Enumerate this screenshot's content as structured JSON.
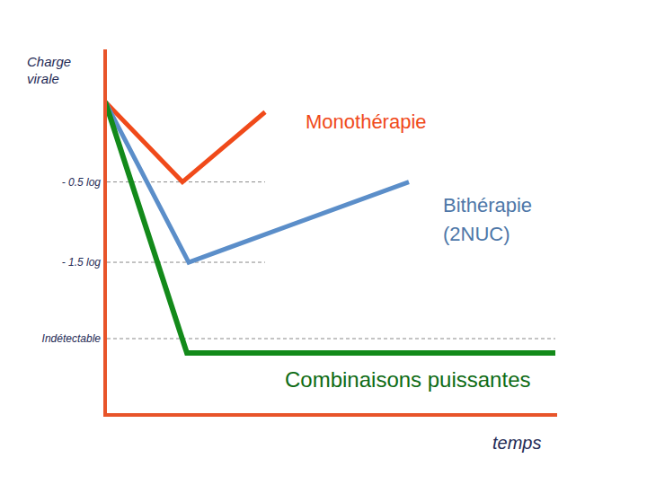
{
  "chart_data": {
    "type": "line",
    "y_label": "Charge virale",
    "x_label": "temps",
    "ylim": [
      -3.4,
      1.15
    ],
    "yticks": [
      {
        "value": -0.5,
        "label": "- 0.5 log"
      },
      {
        "value": -1.5,
        "label": "- 1.5 log"
      },
      {
        "value": -2.45,
        "label": "Indétectable"
      }
    ],
    "xlim": [
      0,
      10.06
    ],
    "tick_labels": "y",
    "grid": true,
    "series": [
      {
        "name": "Monothérapie",
        "color": "#f04a1a",
        "x": [
          0,
          1.72,
          3.56
        ],
        "values": [
          0.5,
          -0.5,
          0.37
        ]
      },
      {
        "name": "Bithérapie (2NUC)",
        "color": "#5b8ec9",
        "x": [
          0,
          1.86,
          6.76
        ],
        "values": [
          0.5,
          -1.5,
          -0.5
        ]
      },
      {
        "name": "Combinaisons puissantes",
        "color": "#138a1a",
        "x": [
          0,
          1.82,
          10.02
        ],
        "values": [
          0.5,
          -2.63,
          -2.63
        ]
      }
    ]
  }
}
